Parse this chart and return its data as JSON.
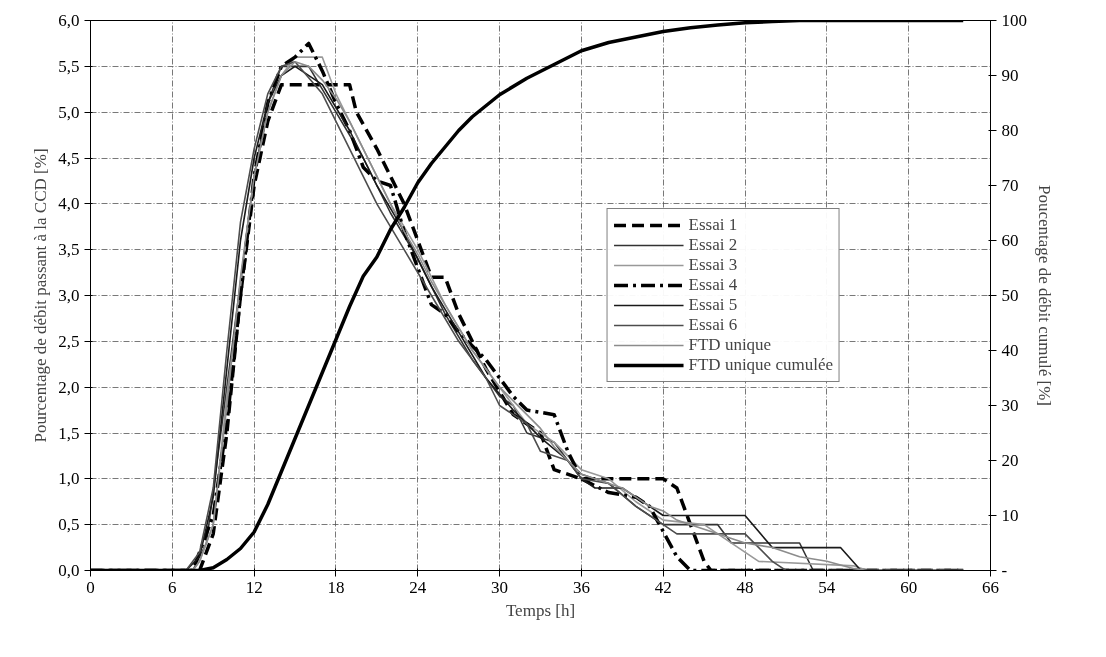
{
  "chart_data": {
    "type": "line",
    "xlabel": "Temps [h]",
    "ylabel": "Pourcentage de débit passant à la CCD [%]",
    "y2label": "Poucentage de débit cumulé [%]",
    "xlim": [
      0,
      66
    ],
    "xticks": [
      0,
      6,
      12,
      18,
      24,
      30,
      36,
      42,
      48,
      54,
      60,
      66
    ],
    "ylim": [
      0,
      6
    ],
    "yticks": [
      {
        "value": 0,
        "label": "0,0"
      },
      {
        "value": 0.5,
        "label": "0,5"
      },
      {
        "value": 1,
        "label": "1,0"
      },
      {
        "value": 1.5,
        "label": "1,5"
      },
      {
        "value": 2,
        "label": "2,0"
      },
      {
        "value": 2.5,
        "label": "2,5"
      },
      {
        "value": 3,
        "label": "3,0"
      },
      {
        "value": 3.5,
        "label": "3,5"
      },
      {
        "value": 4,
        "label": "4,0"
      },
      {
        "value": 4.5,
        "label": "4,5"
      },
      {
        "value": 5,
        "label": "5,0"
      },
      {
        "value": 5.5,
        "label": "5,5"
      },
      {
        "value": 6,
        "label": "6,0"
      }
    ],
    "y2lim": [
      0,
      100
    ],
    "y2ticks": [
      {
        "value": 0,
        "label": "-"
      },
      10,
      20,
      30,
      40,
      50,
      60,
      70,
      80,
      90,
      100
    ],
    "grid": true,
    "legend": "right",
    "series": [
      {
        "name": "Essai 1",
        "color": "#000000",
        "line_style": "dashed",
        "x": [
          0,
          8,
          9,
          10,
          11,
          12,
          13,
          14,
          19,
          19.5,
          21,
          23,
          24,
          25,
          26,
          27,
          29,
          31,
          33,
          34,
          36,
          42,
          43,
          45,
          45.5,
          64
        ],
        "values": [
          0,
          0,
          0.4,
          1.5,
          3.0,
          4.2,
          4.9,
          5.3,
          5.3,
          5.0,
          4.6,
          4.0,
          3.6,
          3.2,
          3.2,
          2.8,
          2.2,
          1.7,
          1.5,
          1.1,
          1.0,
          1.0,
          0.9,
          0.1,
          0,
          0
        ]
      },
      {
        "name": "Essai 2",
        "color": "#333333",
        "line_style": "solid",
        "x": [
          0,
          7.5,
          8.5,
          10,
          12,
          13,
          14,
          16,
          18,
          20,
          22,
          24,
          26,
          28,
          30,
          31,
          32,
          34,
          35,
          36,
          38,
          40,
          42,
          46,
          47,
          52,
          53,
          64
        ],
        "values": [
          0,
          0,
          0.3,
          2.0,
          4.3,
          5.1,
          5.5,
          5.5,
          5.0,
          4.5,
          3.9,
          3.4,
          2.8,
          2.3,
          1.9,
          1.8,
          1.5,
          1.4,
          1.2,
          1.05,
          0.95,
          0.7,
          0.5,
          0.5,
          0.3,
          0.3,
          0,
          0
        ]
      },
      {
        "name": "Essai 3",
        "color": "#999999",
        "line_style": "solid",
        "x": [
          0,
          7.5,
          8,
          9,
          10,
          12,
          13,
          14,
          15,
          17,
          18,
          20,
          22,
          24,
          26,
          28,
          30,
          32,
          34,
          36,
          38,
          40,
          42,
          45,
          46,
          49,
          56,
          57,
          64
        ],
        "values": [
          0,
          0,
          0.1,
          0.5,
          1.9,
          4.3,
          5.0,
          5.4,
          5.6,
          5.6,
          5.2,
          4.6,
          4.0,
          3.5,
          2.9,
          2.4,
          2.0,
          1.6,
          1.4,
          1.1,
          1.0,
          0.75,
          0.55,
          0.5,
          0.4,
          0.1,
          0.05,
          0,
          0
        ]
      },
      {
        "name": "Essai 4",
        "color": "#000000",
        "line_style": "dashdot",
        "x": [
          0,
          7.5,
          8,
          9,
          10,
          11,
          12,
          13,
          14,
          15,
          16,
          17,
          18,
          19,
          20,
          21,
          22,
          23,
          24,
          25,
          26,
          27,
          29,
          31,
          32,
          34,
          35,
          36,
          38,
          40,
          41,
          43,
          44,
          64
        ],
        "values": [
          0,
          0,
          0.2,
          0.6,
          1.6,
          3.0,
          4.3,
          5.1,
          5.5,
          5.6,
          5.75,
          5.45,
          5.1,
          4.8,
          4.4,
          4.25,
          4.2,
          3.7,
          3.3,
          2.9,
          2.8,
          2.6,
          2.3,
          1.9,
          1.75,
          1.7,
          1.3,
          1.0,
          0.85,
          0.8,
          0.7,
          0.15,
          0,
          0
        ]
      },
      {
        "name": "Essai 5",
        "color": "#1a1a1a",
        "line_style": "solid",
        "x": [
          0,
          7,
          8,
          9,
          10,
          11,
          12,
          13,
          14,
          15,
          17,
          19,
          21,
          23,
          25,
          27,
          29,
          31,
          33,
          35,
          36,
          37,
          39,
          40,
          42,
          48,
          50,
          55,
          56.5,
          64
        ],
        "values": [
          0,
          0,
          0.15,
          0.8,
          2.2,
          3.6,
          4.5,
          5.1,
          5.4,
          5.5,
          5.3,
          4.8,
          4.2,
          3.7,
          3.1,
          2.6,
          2.1,
          1.75,
          1.45,
          1.2,
          1.0,
          0.9,
          0.9,
          0.8,
          0.6,
          0.6,
          0.25,
          0.25,
          0,
          0
        ]
      },
      {
        "name": "Essai 6",
        "color": "#4d4d4d",
        "line_style": "solid",
        "x": [
          0,
          7,
          8,
          9,
          10,
          11,
          12,
          13,
          14,
          15,
          17,
          19,
          21,
          23,
          25,
          27,
          29,
          30,
          32,
          33,
          35,
          36,
          38,
          40,
          42,
          43,
          48,
          50,
          51,
          64
        ],
        "values": [
          0,
          0,
          0.2,
          0.9,
          2.4,
          3.8,
          4.6,
          5.2,
          5.5,
          5.55,
          5.2,
          4.6,
          4.0,
          3.5,
          3.0,
          2.5,
          2.1,
          1.8,
          1.6,
          1.3,
          1.2,
          1.0,
          0.95,
          0.7,
          0.5,
          0.4,
          0.4,
          0.1,
          0,
          0
        ]
      },
      {
        "name": "FTD unique",
        "color": "#8c8c8c",
        "line_style": "solid",
        "x": [
          0,
          7.5,
          8,
          9,
          10,
          11,
          12,
          13,
          14,
          15,
          16,
          17,
          18,
          19,
          20,
          21,
          22,
          23,
          24,
          25,
          26,
          27,
          28,
          29,
          30,
          31,
          32,
          33,
          34,
          35,
          36,
          37,
          38,
          39,
          40,
          41,
          42,
          43,
          44,
          45,
          46,
          47,
          48,
          50,
          52,
          54,
          56,
          57,
          64
        ],
        "values": [
          0,
          0,
          0.1,
          0.5,
          1.8,
          3.2,
          4.3,
          5.0,
          5.4,
          5.55,
          5.5,
          5.35,
          5.15,
          4.9,
          4.6,
          4.3,
          4.0,
          3.7,
          3.45,
          3.15,
          2.9,
          2.65,
          2.4,
          2.2,
          2.0,
          1.85,
          1.7,
          1.55,
          1.35,
          1.2,
          1.05,
          1.0,
          0.95,
          0.9,
          0.8,
          0.7,
          0.65,
          0.55,
          0.5,
          0.45,
          0.4,
          0.35,
          0.3,
          0.25,
          0.15,
          0.1,
          0.02,
          0,
          0
        ]
      },
      {
        "name": "FTD unique cumulée",
        "color": "#000000",
        "line_style": "solid",
        "axis": "y2",
        "x": [
          0,
          8,
          9,
          10,
          11,
          12,
          13,
          14,
          15,
          16,
          17,
          18,
          19,
          20,
          21,
          22,
          23,
          24,
          25,
          26,
          27,
          28,
          30,
          32,
          34,
          36,
          38,
          40,
          42,
          44,
          46,
          48,
          50,
          52,
          64
        ],
        "values": [
          0,
          0,
          0.5,
          2,
          4,
          7,
          12,
          18,
          24,
          30,
          36,
          42,
          48,
          53.5,
          57,
          62,
          66,
          70.5,
          74,
          77,
          80,
          82.5,
          86.5,
          89.5,
          92,
          94.5,
          96,
          97,
          98,
          98.7,
          99.2,
          99.6,
          99.8,
          100,
          100
        ]
      }
    ]
  }
}
